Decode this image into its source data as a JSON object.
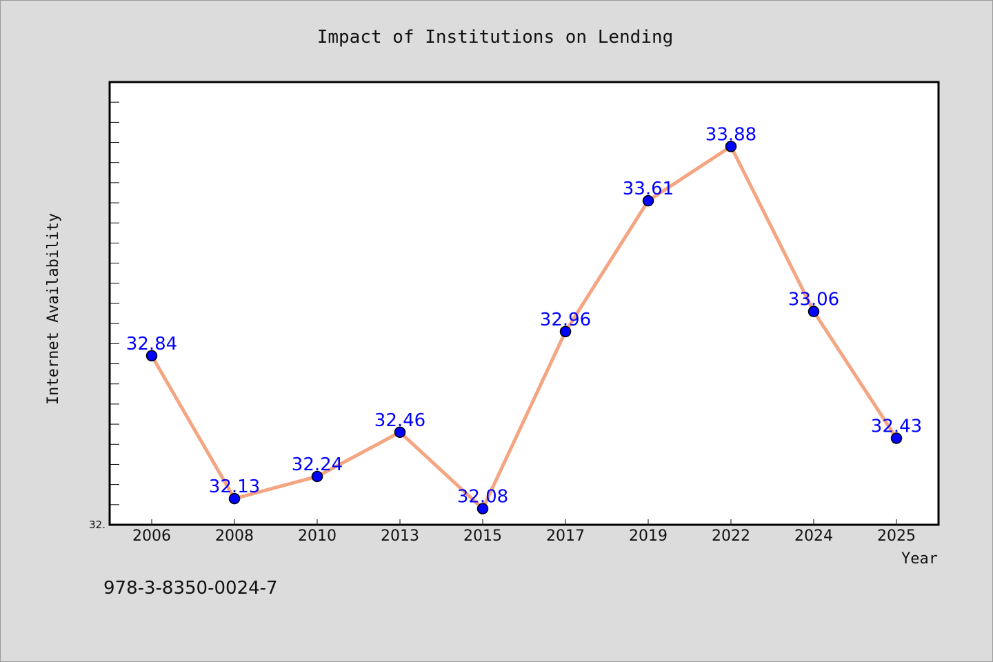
{
  "chart_data": {
    "type": "line",
    "title": "Impact of Institutions on Lending",
    "xlabel": "Year",
    "ylabel": "Internet Availability",
    "categories": [
      "2006",
      "2008",
      "2010",
      "2013",
      "2015",
      "2017",
      "2019",
      "2022",
      "2024",
      "2025"
    ],
    "series": [
      {
        "values": [
          32.84,
          32.13,
          32.24,
          32.46,
          32.08,
          32.96,
          33.61,
          33.88,
          33.06,
          32.43
        ]
      }
    ],
    "data_labels": [
      "32.84",
      "32.13",
      "32.24",
      "32.46",
      "32.08",
      "32.96",
      "33.61",
      "33.88",
      "33.06",
      "32.43"
    ],
    "ymin_label": "32.",
    "ylim": [
      32.0,
      34.2
    ],
    "grid": false,
    "line_color": "#f4a582",
    "marker_color": "#0000ff",
    "label_color": "#0000ff"
  },
  "footer": {
    "isbn": "978-3-8350-0024-7"
  }
}
